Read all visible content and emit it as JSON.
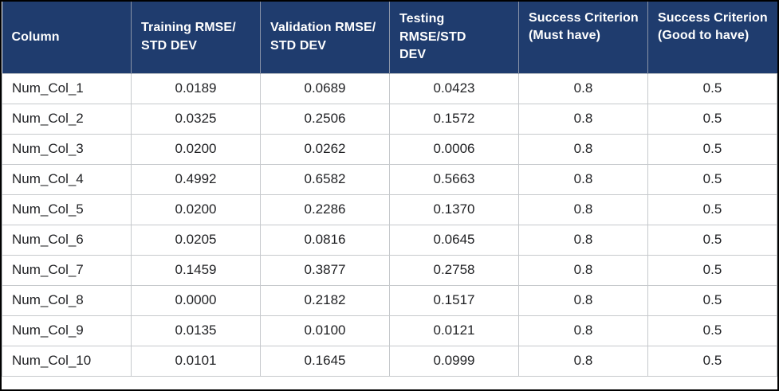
{
  "colors": {
    "header_bg": "#1f3c6e",
    "header_text": "#ffffff",
    "header_divider": "#8a94a8",
    "cell_border": "#c6c9cc",
    "body_text": "#1f2023",
    "frame_border": "#000000",
    "page_bg": "#ffffff"
  },
  "table_display": {
    "headers": [
      "Column",
      "Training RMSE/\nSTD DEV",
      "Validation RMSE/\nSTD DEV",
      "Testing RMSE/STD\nDEV",
      "Success Criterion\n(Must have)",
      "Success Criterion\n(Good to have)"
    ]
  },
  "chart_data": {
    "type": "table",
    "title": "",
    "columns": [
      "Column",
      "Training RMSE/STD DEV",
      "Validation RMSE/STD DEV",
      "Testing RMSE/STD DEV",
      "Success Criterion (Must have)",
      "Success Criterion (Good to have)"
    ],
    "rows": [
      [
        "Num_Col_1",
        "0.0189",
        "0.0689",
        "0.0423",
        "0.8",
        "0.5"
      ],
      [
        "Num_Col_2",
        "0.0325",
        "0.2506",
        "0.1572",
        "0.8",
        "0.5"
      ],
      [
        "Num_Col_3",
        "0.0200",
        "0.0262",
        "0.0006",
        "0.8",
        "0.5"
      ],
      [
        "Num_Col_4",
        "0.4992",
        "0.6582",
        "0.5663",
        "0.8",
        "0.5"
      ],
      [
        "Num_Col_5",
        "0.0200",
        "0.2286",
        "0.1370",
        "0.8",
        "0.5"
      ],
      [
        "Num_Col_6",
        "0.0205",
        "0.0816",
        "0.0645",
        "0.8",
        "0.5"
      ],
      [
        "Num_Col_7",
        "0.1459",
        "0.3877",
        "0.2758",
        "0.8",
        "0.5"
      ],
      [
        "Num_Col_8",
        "0.0000",
        "0.2182",
        "0.1517",
        "0.8",
        "0.5"
      ],
      [
        "Num_Col_9",
        "0.0135",
        "0.0100",
        "0.0121",
        "0.8",
        "0.5"
      ],
      [
        "Num_Col_10",
        "0.0101",
        "0.1645",
        "0.0999",
        "0.8",
        "0.5"
      ]
    ]
  }
}
